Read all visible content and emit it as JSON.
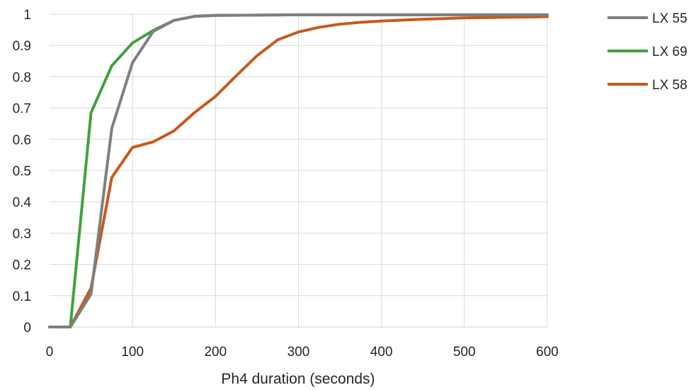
{
  "chart_data": {
    "type": "line",
    "title": "",
    "xlabel": "Ph4 duration (seconds)",
    "ylabel": "",
    "xlim": [
      0,
      600
    ],
    "ylim": [
      0,
      1
    ],
    "x_ticks": [
      0,
      100,
      200,
      300,
      400,
      500,
      600
    ],
    "y_ticks": [
      0,
      0.1,
      0.2,
      0.3,
      0.4,
      0.5,
      0.6,
      0.7,
      0.8,
      0.9,
      1
    ],
    "x_tick_labels": [
      "0",
      "100",
      "200",
      "300",
      "400",
      "500",
      "600"
    ],
    "y_tick_labels": [
      "0",
      "0.1",
      "0.2",
      "0.3",
      "0.4",
      "0.5",
      "0.6",
      "0.7",
      "0.8",
      "0.9",
      "1"
    ],
    "grid": "horizontal",
    "legend_position": "right",
    "series": [
      {
        "name": "LX 55",
        "color": "#7f7f7f",
        "x": [
          0,
          25,
          50,
          75,
          100,
          125,
          150,
          175,
          200,
          250,
          300,
          400,
          500,
          600
        ],
        "y": [
          0,
          0,
          0.105,
          0.635,
          0.845,
          0.945,
          0.98,
          0.993,
          0.996,
          0.997,
          0.998,
          0.998,
          0.998,
          0.998
        ]
      },
      {
        "name": "LX 69",
        "color": "#3ea33e",
        "x": [
          0,
          25,
          50,
          75,
          100,
          125,
          150,
          175,
          200,
          250,
          300,
          400,
          500,
          600
        ],
        "y": [
          0,
          0,
          0.685,
          0.835,
          0.908,
          0.948,
          0.98,
          0.993,
          0.996,
          0.997,
          0.998,
          0.998,
          0.998,
          0.998
        ]
      },
      {
        "name": "LX 58",
        "color": "#c55a1e",
        "x": [
          0,
          25,
          50,
          75,
          100,
          125,
          150,
          175,
          200,
          225,
          250,
          275,
          300,
          325,
          350,
          375,
          400,
          425,
          450,
          475,
          500,
          525,
          550,
          575,
          600
        ],
        "y": [
          0,
          0,
          0.125,
          0.478,
          0.574,
          0.592,
          0.627,
          0.686,
          0.737,
          0.803,
          0.867,
          0.918,
          0.943,
          0.958,
          0.968,
          0.974,
          0.978,
          0.981,
          0.984,
          0.986,
          0.988,
          0.989,
          0.99,
          0.991,
          0.992
        ]
      }
    ]
  }
}
